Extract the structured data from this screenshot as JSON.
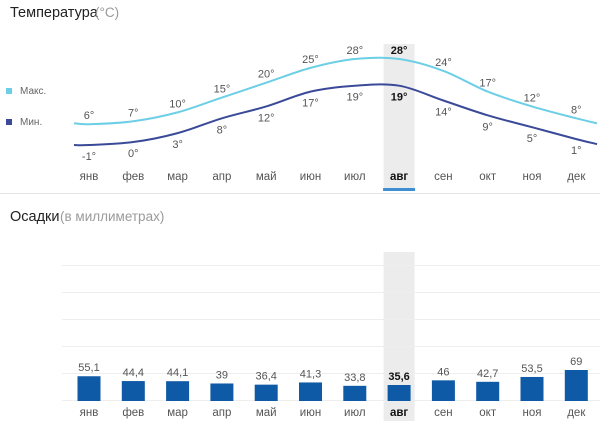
{
  "chart_data": [
    {
      "type": "line",
      "title": "Температура",
      "subtitle": "(°C)",
      "categories": [
        "янв",
        "фев",
        "мар",
        "апр",
        "май",
        "июн",
        "июл",
        "авг",
        "сен",
        "окт",
        "ноя",
        "дек"
      ],
      "series": [
        {
          "name": "Макс.",
          "values": [
            6,
            7,
            10,
            15,
            20,
            25,
            28,
            28,
            24,
            17,
            12,
            8
          ],
          "color": "#6ccfe6"
        },
        {
          "name": "Мин.",
          "values": [
            -1,
            0,
            3,
            8,
            12,
            17,
            19,
            19,
            14,
            9,
            5,
            1
          ],
          "color": "#3a4a98"
        }
      ],
      "value_suffix": "°",
      "highlight_category": "авг",
      "highlight_color": "#ececec",
      "accent_color": "#3f8ed0",
      "grid": false,
      "legend_position": "left"
    },
    {
      "type": "bar",
      "title": "Осадки",
      "subtitle": "(в миллиметрах)",
      "categories": [
        "янв",
        "фев",
        "мар",
        "апр",
        "май",
        "июн",
        "июл",
        "авг",
        "сен",
        "окт",
        "ноя",
        "дек"
      ],
      "values": [
        55.1,
        44.4,
        44.1,
        39,
        36.4,
        41.3,
        33.8,
        35.6,
        46,
        42.7,
        53.5,
        69
      ],
      "labels": [
        "55,1",
        "44,4",
        "44,1",
        "39",
        "36,4",
        "41,3",
        "33,8",
        "35,6",
        "46",
        "42,7",
        "53,5",
        "69"
      ],
      "bar_color": "#0f5aa6",
      "highlight_category": "авг",
      "highlight_color": "#ececec",
      "grid": true,
      "grid_color": "#eeeeee"
    }
  ]
}
